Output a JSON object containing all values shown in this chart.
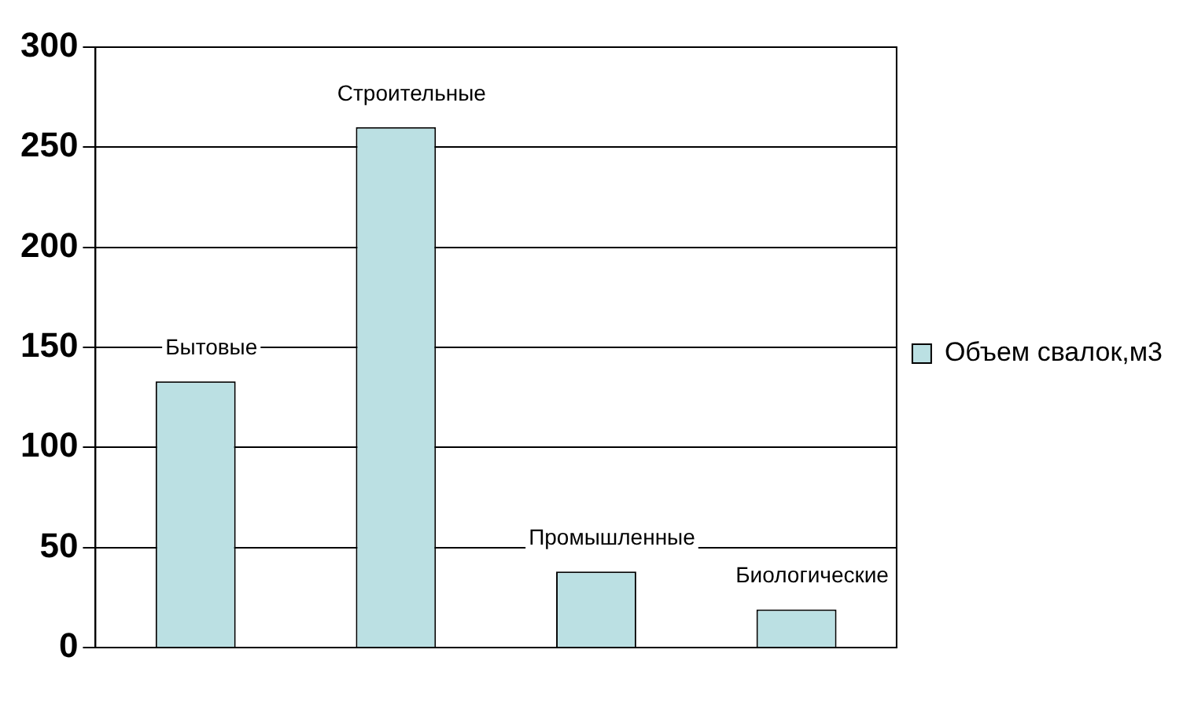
{
  "chart_data": {
    "type": "bar",
    "categories": [
      "Бытовые",
      "Строительные",
      "Промышленные",
      "Биологические"
    ],
    "series": [
      {
        "name": "Объем свалок,м3",
        "color": "#bbe0e3",
        "values": [
          133,
          260,
          38,
          19
        ]
      }
    ],
    "ylim": [
      0,
      300
    ],
    "yticks": [
      0,
      50,
      100,
      150,
      200,
      250,
      300
    ],
    "grid": "y",
    "legend": "right"
  }
}
